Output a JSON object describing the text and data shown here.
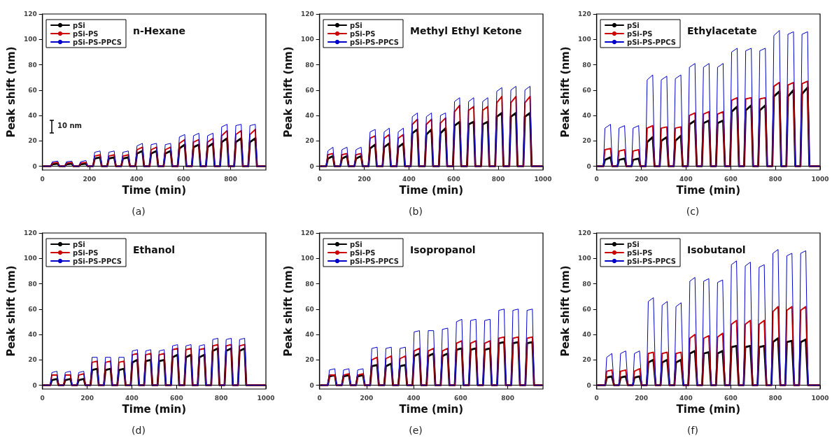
{
  "chart_data": [
    {
      "type": "line",
      "title": "n-Hexane",
      "xlabel": "Time (min)",
      "ylabel": "Peak shift (nm)",
      "legend": "top left",
      "xlim": [
        0,
        950
      ],
      "xticks": [
        0,
        200,
        400,
        600,
        800
      ],
      "ylim": [
        -3,
        120
      ],
      "yticks": [
        0,
        20,
        40,
        60,
        80,
        100,
        120
      ],
      "annotations": [
        "(a)",
        "10 nm"
      ],
      "x": [
        5,
        35,
        42,
        65,
        72,
        95,
        102,
        125,
        132,
        155,
        162,
        185,
        192,
        215,
        222,
        245,
        252,
        275,
        282,
        305,
        312,
        335,
        342,
        365,
        372,
        395,
        402,
        425,
        432,
        455,
        462,
        485,
        492,
        515,
        522,
        545,
        552,
        575,
        582,
        605,
        612,
        635,
        642,
        665,
        672,
        695,
        702,
        725,
        732,
        755,
        762,
        785,
        792,
        815,
        822,
        845,
        852,
        875,
        882,
        905,
        912,
        945
      ],
      "series": [
        {
          "name": "pSi",
          "color": "#000000",
          "values": [
            0,
            0,
            1.5,
            2,
            0,
            0,
            1.5,
            2,
            0,
            0,
            1.5,
            2,
            0,
            0,
            6,
            7,
            0,
            0,
            6,
            7,
            0,
            0,
            6,
            7,
            0,
            0,
            10,
            12,
            0,
            0,
            10,
            12,
            0,
            0,
            10,
            12,
            0,
            0,
            14,
            17,
            0,
            0,
            15,
            17,
            0,
            0,
            15,
            18,
            0,
            0,
            19,
            22,
            0,
            0,
            19,
            22,
            0,
            0,
            19,
            22,
            0,
            0
          ]
        },
        {
          "name": "pSi-PS",
          "color": "#cc0000",
          "values": [
            0,
            0,
            2.5,
            3,
            0,
            0,
            2.5,
            3,
            0,
            0,
            2.5,
            3,
            0,
            0,
            8,
            9,
            0,
            0,
            8,
            9,
            0,
            0,
            8,
            9,
            0,
            0,
            13,
            15,
            0,
            0,
            13,
            15,
            0,
            0,
            13,
            15,
            0,
            0,
            18,
            21,
            0,
            0,
            19,
            21,
            0,
            0,
            19,
            22,
            0,
            0,
            24,
            28,
            0,
            0,
            25,
            28,
            0,
            0,
            25,
            29,
            0,
            0
          ]
        },
        {
          "name": "pSi-PS-PPCS",
          "color": "#0000cc",
          "values": [
            0,
            0,
            3.5,
            4,
            0,
            0,
            3.5,
            4,
            0,
            0,
            3.5,
            4.5,
            0,
            0,
            11,
            12,
            0,
            0,
            11,
            12,
            0,
            0,
            11,
            12,
            0,
            0,
            16,
            18,
            0,
            0,
            17,
            18,
            0,
            0,
            17,
            18,
            0,
            0,
            23,
            25,
            0,
            0,
            24,
            26,
            0,
            0,
            24,
            26,
            0,
            0,
            31,
            33,
            0,
            0,
            32,
            33,
            0,
            0,
            32,
            33,
            0,
            0
          ]
        }
      ]
    },
    {
      "type": "line",
      "title": "Methyl Ethyl Ketone",
      "xlabel": "Time (min)",
      "ylabel": "Peak shift (nm)",
      "legend": "top left",
      "xlim": [
        0,
        1000
      ],
      "xticks": [
        0,
        200,
        400,
        600,
        800,
        1000
      ],
      "ylim": [
        -3,
        120
      ],
      "yticks": [
        0,
        20,
        40,
        60,
        80,
        100,
        120
      ],
      "annotations": [
        "(b)"
      ],
      "x": [
        5,
        30,
        37,
        60,
        67,
        93,
        100,
        123,
        130,
        156,
        163,
        186,
        193,
        219,
        226,
        249,
        256,
        282,
        289,
        312,
        319,
        345,
        352,
        375,
        382,
        408,
        415,
        438,
        445,
        471,
        478,
        501,
        508,
        534,
        541,
        564,
        571,
        597,
        604,
        627,
        634,
        660,
        667,
        690,
        697,
        723,
        730,
        753,
        760,
        786,
        793,
        816,
        823,
        849,
        856,
        879,
        886,
        912,
        919,
        942,
        949,
        995
      ],
      "series": [
        {
          "name": "pSi",
          "color": "#000000",
          "values": [
            0,
            0,
            6,
            8,
            0,
            0,
            6,
            8,
            0,
            0,
            6,
            8,
            0,
            0,
            14,
            17,
            0,
            0,
            15,
            18,
            0,
            0,
            15,
            18,
            0,
            0,
            26,
            29,
            0,
            0,
            25,
            29,
            0,
            0,
            26,
            30,
            0,
            0,
            32,
            35,
            0,
            0,
            33,
            35,
            0,
            0,
            33,
            35,
            0,
            0,
            39,
            42,
            0,
            0,
            39,
            42,
            0,
            0,
            39,
            42,
            0,
            0
          ]
        },
        {
          "name": "pSi-PS",
          "color": "#cc0000",
          "values": [
            0,
            0,
            9,
            10,
            0,
            0,
            9,
            10,
            0,
            0,
            9,
            10,
            0,
            0,
            22,
            24,
            0,
            0,
            22,
            25,
            0,
            0,
            22,
            25,
            0,
            0,
            33,
            37,
            0,
            0,
            33,
            37,
            0,
            0,
            34,
            38,
            0,
            0,
            43,
            48,
            0,
            0,
            44,
            47,
            0,
            0,
            44,
            47,
            0,
            0,
            50,
            55,
            0,
            0,
            50,
            55,
            0,
            0,
            50,
            55,
            0,
            0
          ]
        },
        {
          "name": "pSi-PS-PPCS",
          "color": "#0000cc",
          "values": [
            0,
            0,
            12,
            15,
            0,
            0,
            13,
            15,
            0,
            0,
            13,
            15,
            0,
            0,
            27,
            29,
            0,
            0,
            27,
            30,
            0,
            0,
            27,
            30,
            0,
            0,
            39,
            42,
            0,
            0,
            39,
            42,
            0,
            0,
            40,
            42,
            0,
            0,
            51,
            54,
            0,
            0,
            51,
            54,
            0,
            0,
            51,
            54,
            0,
            0,
            59,
            62,
            0,
            0,
            60,
            63,
            0,
            0,
            60,
            63,
            0,
            0
          ]
        }
      ]
    },
    {
      "type": "line",
      "title": "Ethylacetate",
      "xlabel": "Time (min)",
      "ylabel": "Peak shift (nm)",
      "legend": "top left",
      "xlim": [
        0,
        1000
      ],
      "xticks": [
        0,
        200,
        400,
        600,
        800,
        1000
      ],
      "ylim": [
        -3,
        120
      ],
      "yticks": [
        0,
        20,
        40,
        60,
        80,
        100,
        120
      ],
      "annotations": [
        "(c)"
      ],
      "x": [
        5,
        30,
        37,
        62,
        70,
        93,
        100,
        125,
        133,
        156,
        163,
        188,
        196,
        219,
        226,
        251,
        259,
        282,
        289,
        314,
        322,
        345,
        352,
        377,
        385,
        408,
        415,
        440,
        448,
        471,
        478,
        503,
        511,
        534,
        541,
        566,
        574,
        597,
        604,
        629,
        637,
        660,
        667,
        692,
        700,
        723,
        730,
        755,
        763,
        786,
        793,
        818,
        826,
        849,
        856,
        881,
        889,
        912,
        919,
        944,
        952,
        995
      ],
      "series": [
        {
          "name": "pSi",
          "color": "#000000",
          "values": [
            0,
            0,
            5,
            7,
            0,
            0,
            5,
            6,
            0,
            0,
            5,
            6,
            0,
            0,
            19,
            23,
            0,
            0,
            20,
            23,
            0,
            0,
            20,
            24,
            0,
            0,
            33,
            36,
            0,
            0,
            34,
            36,
            0,
            0,
            34,
            36,
            0,
            0,
            43,
            47,
            0,
            0,
            44,
            48,
            0,
            0,
            44,
            48,
            0,
            0,
            55,
            59,
            0,
            0,
            55,
            60,
            0,
            0,
            57,
            62,
            0,
            0
          ]
        },
        {
          "name": "pSi-PS",
          "color": "#cc0000",
          "values": [
            0,
            0,
            13,
            14,
            0,
            0,
            12,
            13,
            0,
            0,
            12,
            13,
            0,
            0,
            30,
            32,
            0,
            0,
            30,
            31,
            0,
            0,
            30,
            31,
            0,
            0,
            40,
            42,
            0,
            0,
            41,
            43,
            0,
            0,
            41,
            43,
            0,
            0,
            52,
            54,
            0,
            0,
            53,
            54,
            0,
            0,
            53,
            54,
            0,
            0,
            63,
            66,
            0,
            0,
            64,
            66,
            0,
            0,
            65,
            67,
            0,
            0
          ]
        },
        {
          "name": "pSi-PS-PPCS",
          "color": "#0000cc",
          "values": [
            0,
            0,
            30,
            33,
            0,
            0,
            30,
            32,
            0,
            0,
            30,
            32,
            0,
            0,
            68,
            72,
            0,
            0,
            68,
            71,
            0,
            0,
            69,
            72,
            0,
            0,
            78,
            81,
            0,
            0,
            78,
            81,
            0,
            0,
            78,
            81,
            0,
            0,
            90,
            93,
            0,
            0,
            91,
            93,
            0,
            0,
            91,
            93,
            0,
            0,
            103,
            107,
            0,
            0,
            104,
            106,
            0,
            0,
            104,
            106,
            0,
            0
          ]
        }
      ]
    },
    {
      "type": "line",
      "title": "Ethanol",
      "xlabel": "Time (min)",
      "ylabel": "Peak shift (nm)",
      "legend": "top left",
      "xlim": [
        0,
        1000
      ],
      "xticks": [
        0,
        200,
        400,
        600,
        800,
        1000
      ],
      "ylim": [
        -3,
        120
      ],
      "yticks": [
        0,
        20,
        40,
        60,
        80,
        100,
        120
      ],
      "annotations": [
        "(d)"
      ],
      "x": [
        5,
        35,
        42,
        65,
        72,
        95,
        102,
        125,
        132,
        155,
        162,
        185,
        192,
        215,
        222,
        245,
        252,
        275,
        282,
        305,
        312,
        335,
        342,
        365,
        372,
        395,
        402,
        425,
        432,
        455,
        462,
        485,
        492,
        515,
        522,
        545,
        552,
        575,
        582,
        605,
        612,
        635,
        642,
        665,
        672,
        695,
        702,
        725,
        732,
        755,
        762,
        785,
        792,
        815,
        822,
        845,
        852,
        875,
        882,
        905,
        912,
        995
      ],
      "series": [
        {
          "name": "pSi",
          "color": "#000000",
          "values": [
            0,
            0,
            4,
            5,
            0,
            0,
            4,
            5,
            0,
            0,
            4,
            5,
            0,
            0,
            12,
            13,
            0,
            0,
            12,
            13,
            0,
            0,
            12,
            13,
            0,
            0,
            18,
            20,
            0,
            0,
            19,
            20,
            0,
            0,
            19,
            20,
            0,
            0,
            22,
            24,
            0,
            0,
            22,
            24,
            0,
            0,
            22,
            24,
            0,
            0,
            27,
            29,
            0,
            0,
            27,
            29,
            0,
            0,
            27,
            29,
            0,
            0
          ]
        },
        {
          "name": "pSi-PS",
          "color": "#cc0000",
          "values": [
            0,
            0,
            8,
            8,
            0,
            0,
            8,
            8,
            0,
            0,
            8,
            9,
            0,
            0,
            18,
            19,
            0,
            0,
            18,
            19,
            0,
            0,
            18,
            19,
            0,
            0,
            24,
            25,
            0,
            0,
            24,
            25,
            0,
            0,
            24,
            25,
            0,
            0,
            28,
            29,
            0,
            0,
            28,
            29,
            0,
            0,
            28,
            29,
            0,
            0,
            31,
            32,
            0,
            0,
            31,
            32,
            0,
            0,
            31,
            32,
            0,
            0
          ]
        },
        {
          "name": "pSi-PS-PPCS",
          "color": "#0000cc",
          "values": [
            0,
            0,
            10,
            11,
            0,
            0,
            10,
            11,
            0,
            0,
            10,
            11,
            0,
            0,
            22,
            22,
            0,
            0,
            22,
            22,
            0,
            0,
            22,
            22,
            0,
            0,
            27,
            28,
            0,
            0,
            27,
            28,
            0,
            0,
            27,
            28,
            0,
            0,
            31,
            32,
            0,
            0,
            31,
            32,
            0,
            0,
            31,
            32,
            0,
            0,
            36,
            37,
            0,
            0,
            36,
            37,
            0,
            0,
            36,
            37,
            0,
            0
          ]
        }
      ]
    },
    {
      "type": "line",
      "title": "Isopropanol",
      "xlabel": "Time (min)",
      "ylabel": "Peak shift (nm)",
      "legend": "top left",
      "xlim": [
        0,
        950
      ],
      "xticks": [
        0,
        200,
        400,
        600,
        800
      ],
      "ylim": [
        -3,
        120
      ],
      "yticks": [
        0,
        20,
        40,
        60,
        80,
        100,
        120
      ],
      "annotations": [
        "(e)"
      ],
      "x": [
        5,
        35,
        42,
        65,
        72,
        95,
        102,
        125,
        132,
        155,
        162,
        185,
        192,
        215,
        222,
        245,
        252,
        275,
        282,
        305,
        312,
        335,
        342,
        365,
        372,
        395,
        402,
        425,
        432,
        455,
        462,
        485,
        492,
        515,
        522,
        545,
        552,
        575,
        582,
        605,
        612,
        635,
        642,
        665,
        672,
        695,
        702,
        725,
        732,
        755,
        762,
        785,
        792,
        815,
        822,
        845,
        852,
        875,
        882,
        905,
        912,
        945
      ],
      "series": [
        {
          "name": "pSi",
          "color": "#000000",
          "values": [
            0,
            0,
            7,
            8,
            0,
            0,
            7,
            8,
            0,
            0,
            7,
            8,
            0,
            0,
            15,
            16,
            0,
            0,
            15,
            17,
            0,
            0,
            15,
            16,
            0,
            0,
            23,
            25,
            0,
            0,
            23,
            25,
            0,
            0,
            23,
            25,
            0,
            0,
            28,
            29,
            0,
            0,
            28,
            29,
            0,
            0,
            28,
            29,
            0,
            0,
            33,
            34,
            0,
            0,
            33,
            34,
            0,
            0,
            33,
            34,
            0,
            0
          ]
        },
        {
          "name": "pSi-PS",
          "color": "#cc0000",
          "values": [
            0,
            0,
            8,
            8,
            0,
            0,
            8,
            9,
            0,
            0,
            8,
            9,
            0,
            0,
            20,
            22,
            0,
            0,
            21,
            23,
            0,
            0,
            21,
            23,
            0,
            0,
            27,
            29,
            0,
            0,
            27,
            29,
            0,
            0,
            27,
            29,
            0,
            0,
            33,
            35,
            0,
            0,
            33,
            35,
            0,
            0,
            33,
            35,
            0,
            0,
            37,
            38,
            0,
            0,
            37,
            38,
            0,
            0,
            37,
            38,
            0,
            0
          ]
        },
        {
          "name": "pSi-PS-PPCS",
          "color": "#0000cc",
          "values": [
            0,
            0,
            12,
            13,
            0,
            0,
            12,
            13,
            0,
            0,
            12,
            13,
            0,
            0,
            29,
            30,
            0,
            0,
            29,
            30,
            0,
            0,
            29,
            30,
            0,
            0,
            42,
            43,
            0,
            0,
            43,
            43,
            0,
            0,
            44,
            45,
            0,
            0,
            50,
            52,
            0,
            0,
            51,
            52,
            0,
            0,
            51,
            52,
            0,
            0,
            59,
            60,
            0,
            0,
            59,
            60,
            0,
            0,
            59,
            60,
            0,
            0
          ]
        }
      ]
    },
    {
      "type": "line",
      "title": "Isobutanol",
      "xlabel": "Time (min)",
      "ylabel": "Peak shift (nm)",
      "legend": "top left",
      "xlim": [
        0,
        1000
      ],
      "xticks": [
        0,
        200,
        400,
        600,
        800,
        1000
      ],
      "ylim": [
        -3,
        120
      ],
      "yticks": [
        0,
        20,
        40,
        60,
        80,
        100,
        120
      ],
      "annotations": [
        "(f)"
      ],
      "x": [
        5,
        38,
        45,
        68,
        78,
        100,
        107,
        130,
        140,
        162,
        169,
        192,
        202,
        224,
        231,
        254,
        264,
        286,
        293,
        316,
        326,
        348,
        355,
        378,
        388,
        410,
        417,
        440,
        450,
        472,
        479,
        502,
        512,
        534,
        541,
        564,
        574,
        596,
        603,
        626,
        636,
        658,
        665,
        688,
        698,
        720,
        727,
        750,
        760,
        782,
        789,
        812,
        822,
        844,
        851,
        874,
        884,
        906,
        913,
        936,
        946,
        995
      ],
      "series": [
        {
          "name": "pSi",
          "color": "#000000",
          "values": [
            0,
            0,
            6,
            7,
            0,
            0,
            6,
            7,
            0,
            0,
            6,
            7,
            0,
            0,
            18,
            20,
            0,
            0,
            18,
            20,
            0,
            0,
            18,
            20,
            0,
            0,
            25,
            27,
            0,
            0,
            25,
            26,
            0,
            0,
            25,
            27,
            0,
            0,
            30,
            31,
            0,
            0,
            30,
            31,
            0,
            0,
            30,
            31,
            0,
            0,
            34,
            37,
            0,
            0,
            34,
            35,
            0,
            0,
            34,
            36,
            0,
            0
          ]
        },
        {
          "name": "pSi-PS",
          "color": "#cc0000",
          "values": [
            0,
            0,
            11,
            12,
            0,
            0,
            11,
            12,
            0,
            0,
            11,
            13,
            0,
            0,
            25,
            26,
            0,
            0,
            25,
            26,
            0,
            0,
            25,
            26,
            0,
            0,
            37,
            40,
            0,
            0,
            37,
            39,
            0,
            0,
            38,
            41,
            0,
            0,
            48,
            51,
            0,
            0,
            48,
            51,
            0,
            0,
            48,
            51,
            0,
            0,
            58,
            62,
            0,
            0,
            59,
            62,
            0,
            0,
            59,
            62,
            0,
            0
          ]
        },
        {
          "name": "pSi-PS-PPCS",
          "color": "#0000cc",
          "values": [
            0,
            0,
            22,
            25,
            0,
            0,
            25,
            27,
            0,
            0,
            25,
            27,
            0,
            0,
            66,
            69,
            0,
            0,
            63,
            66,
            0,
            0,
            62,
            65,
            0,
            0,
            82,
            85,
            0,
            0,
            82,
            84,
            0,
            0,
            81,
            83,
            0,
            0,
            95,
            98,
            0,
            0,
            94,
            97,
            0,
            0,
            93,
            95,
            0,
            0,
            104,
            107,
            0,
            0,
            102,
            104,
            0,
            0,
            104,
            106,
            0,
            0
          ]
        }
      ]
    }
  ]
}
